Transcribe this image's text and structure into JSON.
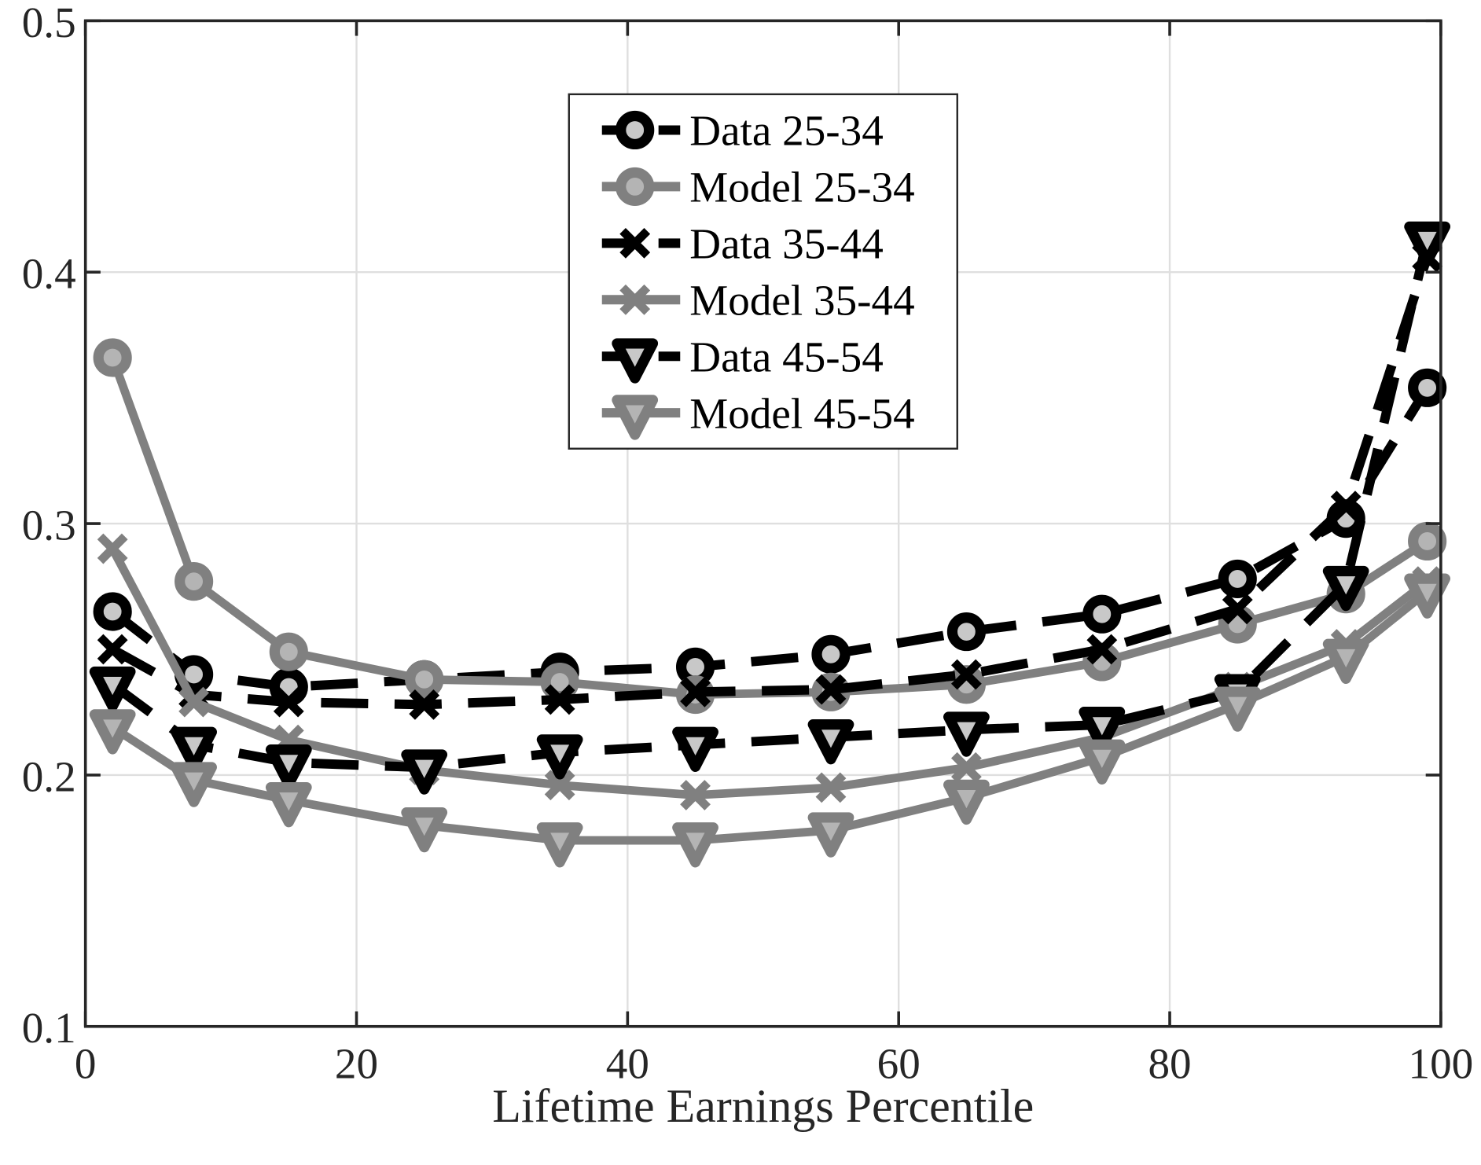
{
  "chart_data": {
    "type": "line",
    "title": "",
    "xlabel": "Lifetime Earnings Percentile",
    "ylabel": "",
    "xlim": [
      0,
      100
    ],
    "ylim": [
      0.1,
      0.5
    ],
    "xticks": [
      0,
      20,
      40,
      60,
      80,
      100
    ],
    "xtick_labels": [
      "0",
      "20",
      "40",
      "60",
      "80",
      "100"
    ],
    "yticks": [
      0.1,
      0.2,
      0.3,
      0.4,
      0.5
    ],
    "ytick_labels": [
      "0.1",
      "0.2",
      "0.3",
      "0.4",
      "0.5"
    ],
    "grid": true,
    "legend_position": "upper center (inside axes)",
    "x": [
      2,
      8,
      15,
      25,
      35,
      45,
      55,
      65,
      75,
      85,
      93,
      99
    ],
    "series": [
      {
        "name": "Data  25-34",
        "style": "dashed",
        "color": "#000000",
        "marker": "circle",
        "values": [
          0.265,
          0.24,
          0.235,
          0.238,
          0.241,
          0.243,
          0.248,
          0.257,
          0.264,
          0.278,
          0.302,
          0.354
        ]
      },
      {
        "name": "Model 25-34",
        "style": "solid",
        "color": "#808080",
        "marker": "circle",
        "values": [
          0.366,
          0.277,
          0.249,
          0.238,
          0.237,
          0.232,
          0.233,
          0.236,
          0.245,
          0.26,
          0.272,
          0.293
        ]
      },
      {
        "name": "Data  35-44",
        "style": "dashed",
        "color": "#000000",
        "marker": "x",
        "values": [
          0.25,
          0.232,
          0.229,
          0.228,
          0.23,
          0.233,
          0.234,
          0.24,
          0.25,
          0.266,
          0.307,
          0.406
        ]
      },
      {
        "name": "Model 35-44",
        "style": "solid",
        "color": "#808080",
        "marker": "x",
        "values": [
          0.29,
          0.229,
          0.214,
          0.202,
          0.196,
          0.192,
          0.195,
          0.203,
          0.215,
          0.235,
          0.252,
          0.277
        ]
      },
      {
        "name": "Data  45-54",
        "style": "dashed",
        "color": "#000000",
        "marker": "triangle-down",
        "values": [
          0.236,
          0.212,
          0.205,
          0.203,
          0.209,
          0.212,
          0.215,
          0.218,
          0.22,
          0.233,
          0.276,
          0.413
        ]
      },
      {
        "name": "Model 45-54",
        "style": "solid",
        "color": "#808080",
        "marker": "triangle-down",
        "values": [
          0.219,
          0.198,
          0.19,
          0.18,
          0.174,
          0.174,
          0.178,
          0.191,
          0.207,
          0.228,
          0.247,
          0.273
        ]
      }
    ],
    "colors": {
      "data_line": "#000000",
      "model_line": "#808080",
      "marker_fill_data": "#c8c8c8",
      "marker_fill_model": "#b4b4b4",
      "grid": "#dfdfdf",
      "axis": "#262626"
    }
  }
}
